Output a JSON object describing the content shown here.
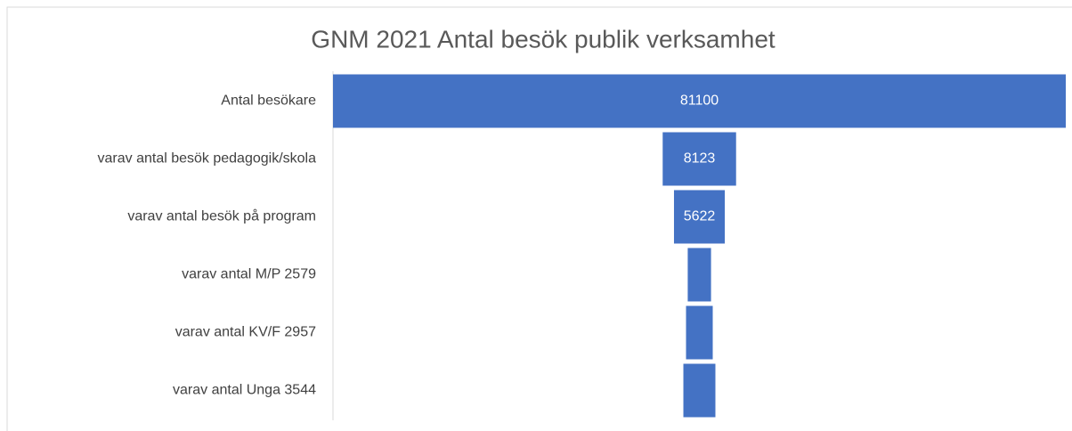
{
  "chart_data": {
    "type": "funnel",
    "title": "GNM 2021 Antal besök publik verksamhet",
    "categories": [
      "Antal besökare",
      "varav antal besök pedagogik/skola",
      "varav antal besök på program",
      "varav antal M/P 2579",
      "varav antal KV/F 2957",
      "varav antal Unga 3544"
    ],
    "values": [
      81100,
      8123,
      5622,
      2579,
      2957,
      3544
    ],
    "color": "#4472c4"
  }
}
